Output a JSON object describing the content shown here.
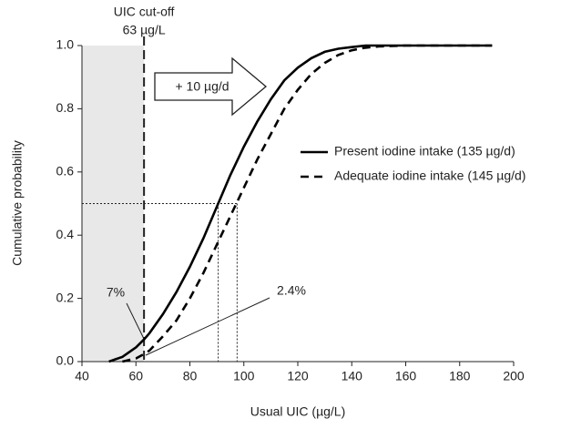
{
  "chart_data": {
    "type": "line",
    "x_label": "Usual UIC (µg/L)",
    "y_label": "Cumulative probability",
    "x": [
      50,
      55,
      60,
      63,
      65,
      70,
      75,
      80,
      85,
      90,
      95,
      100,
      105,
      110,
      115,
      120,
      125,
      130,
      135,
      140,
      145,
      150,
      160,
      170,
      180,
      192
    ],
    "series": [
      {
        "name": "Present iodine intake (135 µg/d)",
        "color": "#000000",
        "dash": false,
        "values": [
          0.0,
          0.015,
          0.045,
          0.07,
          0.09,
          0.15,
          0.22,
          0.3,
          0.39,
          0.49,
          0.59,
          0.68,
          0.76,
          0.83,
          0.89,
          0.93,
          0.96,
          0.98,
          0.99,
          0.995,
          1.0,
          1.0,
          1.0,
          1.0,
          1.0,
          1.0
        ]
      },
      {
        "name": "Adequate iodine intake (145 µg/d)",
        "color": "#000000",
        "dash": true,
        "values": [
          null,
          0.0,
          0.01,
          0.024,
          0.035,
          0.08,
          0.13,
          0.2,
          0.28,
          0.37,
          0.46,
          0.55,
          0.64,
          0.72,
          0.8,
          0.86,
          0.91,
          0.945,
          0.97,
          0.985,
          0.993,
          0.997,
          1.0,
          1.0,
          1.0,
          1.0
        ]
      }
    ],
    "xlim": [
      40,
      200
    ],
    "xticks": [
      40,
      60,
      80,
      100,
      120,
      140,
      160,
      180,
      200
    ],
    "ylim": [
      0,
      1
    ],
    "yticks": [
      {
        "value": 0,
        "label": "0.0"
      },
      0.2,
      0.4,
      0.6,
      0.8,
      {
        "value": 1,
        "label": "1.0"
      }
    ],
    "grid": false,
    "legend": "right",
    "cutoff": 63,
    "cutoff_label": [
      "UIC cut-off",
      "63 µg/L"
    ],
    "shift_label": "+ 10 µg/d",
    "reference_y": 0.5,
    "reference_x": [
      90.5,
      97.5
    ],
    "annotations": [
      "7%",
      "2.4%"
    ]
  }
}
